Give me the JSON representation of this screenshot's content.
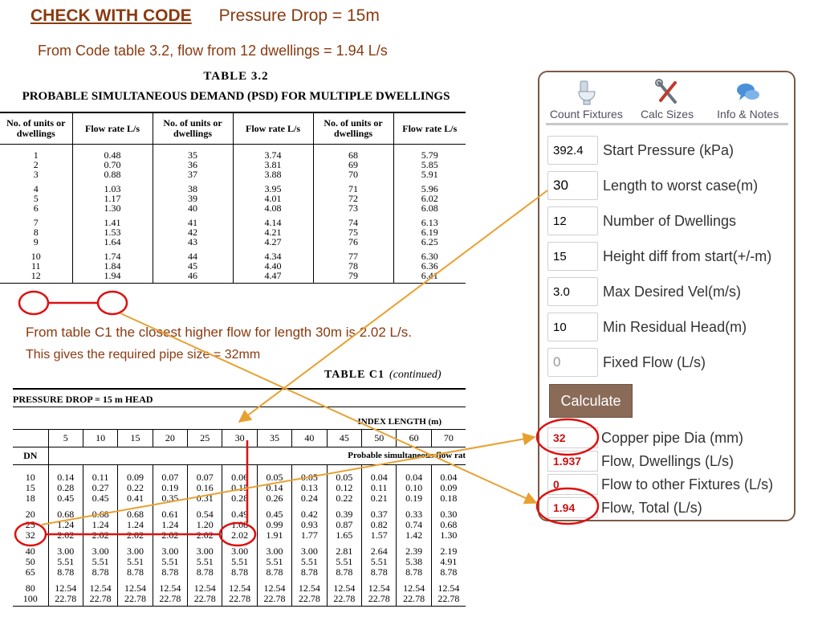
{
  "heading": {
    "check": "CHECK WITH CODE",
    "pressure_drop": "Pressure Drop = 15m",
    "subtitle": "From Code table 3.2, flow from 12 dwellings = 1.94 L/s"
  },
  "table32": {
    "title": "TABLE   3.2",
    "subtitle": "PROBABLE SIMULTANEOUS DEMAND (PSD) FOR MULTIPLE DWELLINGS",
    "headers": [
      "No. of units or dwellings",
      "Flow rate L/s",
      "No. of units or dwellings",
      "Flow rate L/s",
      "No. of units or dwellings",
      "Flow rate L/s"
    ],
    "rows": [
      [
        "1",
        "0.48",
        "35",
        "3.74",
        "68",
        "5.79"
      ],
      [
        "2",
        "0.70",
        "36",
        "3.81",
        "69",
        "5.85"
      ],
      [
        "3",
        "0.88",
        "37",
        "3.88",
        "70",
        "5.91"
      ],
      [
        "4",
        "1.03",
        "38",
        "3.95",
        "71",
        "5.96"
      ],
      [
        "5",
        "1.17",
        "39",
        "4.01",
        "72",
        "6.02"
      ],
      [
        "6",
        "1.30",
        "40",
        "4.08",
        "73",
        "6.08"
      ],
      [
        "7",
        "1.41",
        "41",
        "4.14",
        "74",
        "6.13"
      ],
      [
        "8",
        "1.53",
        "42",
        "4.21",
        "75",
        "6.19"
      ],
      [
        "9",
        "1.64",
        "43",
        "4.27",
        "76",
        "6.25"
      ],
      [
        "10",
        "1.74",
        "44",
        "4.34",
        "77",
        "6.30"
      ],
      [
        "11",
        "1.84",
        "45",
        "4.40",
        "78",
        "6.36"
      ],
      [
        "12",
        "1.94",
        "46",
        "4.47",
        "79",
        "6.41"
      ]
    ]
  },
  "notes": {
    "line1": "From table C1 the closest higher flow for length 30m is 2.02 L/s.",
    "line2": "This gives the  required pipe size  = 32mm"
  },
  "tableC1": {
    "title": "TABLE   C1",
    "continued": "(continued)",
    "pressure_drop": "PRESSURE DROP = 15 m HEAD",
    "index_length": "INDEX LENGTH (m)",
    "lengths": [
      "5",
      "10",
      "15",
      "20",
      "25",
      "30",
      "35",
      "40",
      "45",
      "50",
      "60",
      "70"
    ],
    "dn_label": "DN",
    "psd_label": "Probable simultaneous flow rat",
    "rows": [
      {
        "dn": "10",
        "v": [
          "0.14",
          "0.11",
          "0.09",
          "0.07",
          "0.07",
          "0.06",
          "0.05",
          "0.05",
          "0.05",
          "0.04",
          "0.04",
          "0.04"
        ]
      },
      {
        "dn": "15",
        "v": [
          "0.28",
          "0.27",
          "0.22",
          "0.19",
          "0.16",
          "0.15",
          "0.14",
          "0.13",
          "0.12",
          "0.11",
          "0.10",
          "0.09"
        ]
      },
      {
        "dn": "18",
        "v": [
          "0.45",
          "0.45",
          "0.41",
          "0.35",
          "0.31",
          "0.28",
          "0.26",
          "0.24",
          "0.22",
          "0.21",
          "0.19",
          "0.18"
        ]
      },
      {
        "dn": "20",
        "v": [
          "0.68",
          "0.68",
          "0.68",
          "0.61",
          "0.54",
          "0.49",
          "0.45",
          "0.42",
          "0.39",
          "0.37",
          "0.33",
          "0.30"
        ]
      },
      {
        "dn": "25",
        "v": [
          "1.24",
          "1.24",
          "1.24",
          "1.24",
          "1.20",
          "1.08",
          "0.99",
          "0.93",
          "0.87",
          "0.82",
          "0.74",
          "0.68"
        ]
      },
      {
        "dn": "32",
        "v": [
          "2.02",
          "2.02",
          "2.02",
          "2.02",
          "2.02",
          "2.02",
          "1.91",
          "1.77",
          "1.65",
          "1.57",
          "1.42",
          "1.30"
        ]
      },
      {
        "dn": "40",
        "v": [
          "3.00",
          "3.00",
          "3.00",
          "3.00",
          "3.00",
          "3.00",
          "3.00",
          "3.00",
          "2.81",
          "2.64",
          "2.39",
          "2.19"
        ]
      },
      {
        "dn": "50",
        "v": [
          "5.51",
          "5.51",
          "5.51",
          "5.51",
          "5.51",
          "5.51",
          "5.51",
          "5.51",
          "5.51",
          "5.51",
          "5.38",
          "4.91"
        ]
      },
      {
        "dn": "65",
        "v": [
          "8.78",
          "8.78",
          "8.78",
          "8.78",
          "8.78",
          "8.78",
          "8.78",
          "8.78",
          "8.78",
          "8.78",
          "8.78",
          "8.78"
        ]
      },
      {
        "dn": "80",
        "v": [
          "12.54",
          "12.54",
          "12.54",
          "12.54",
          "12.54",
          "12.54",
          "12.54",
          "12.54",
          "12.54",
          "12.54",
          "12.54",
          "12.54"
        ]
      },
      {
        "dn": "100",
        "v": [
          "22.78",
          "22.78",
          "22.78",
          "22.78",
          "22.78",
          "22.78",
          "22.78",
          "22.78",
          "22.78",
          "22.78",
          "22.78",
          "22.78"
        ]
      }
    ]
  },
  "calculator": {
    "tabs": [
      {
        "label": "Count Fixtures",
        "icon": "toilet-icon"
      },
      {
        "label": "Calc Sizes",
        "icon": "tools-icon"
      },
      {
        "label": "Info & Notes",
        "icon": "chat-bubbles-icon"
      }
    ],
    "fields": [
      {
        "value": "392.4",
        "label": "Start Pressure (kPa)"
      },
      {
        "value": "30",
        "label": "Length to worst case(m)"
      },
      {
        "value": "12",
        "label": "Number of Dwellings"
      },
      {
        "value": "15",
        "label": "Height diff from start(+/-m)"
      },
      {
        "value": "3.0",
        "label": "Max Desired Vel(m/s)"
      },
      {
        "value": "10",
        "label": "Min Residual Head(m)"
      },
      {
        "value": "0",
        "label": "Fixed Flow (L/s)"
      }
    ],
    "calculate_label": "Calculate",
    "results": [
      {
        "value": "32",
        "label": "Copper pipe Dia (mm)"
      },
      {
        "value": "1.937",
        "label": "Flow, Dwellings (L/s)"
      },
      {
        "value": "0",
        "label": "Flow to other Fixtures (L/s)"
      },
      {
        "value": "1.94",
        "label": "Flow, Total (L/s)"
      }
    ]
  },
  "colors": {
    "heading": "#8a3a10",
    "circle": "#dd1111",
    "arrow": "#e8a030",
    "result_text": "#cc1111",
    "button": "#8a6b58",
    "panel_border": "#7a5a48"
  }
}
